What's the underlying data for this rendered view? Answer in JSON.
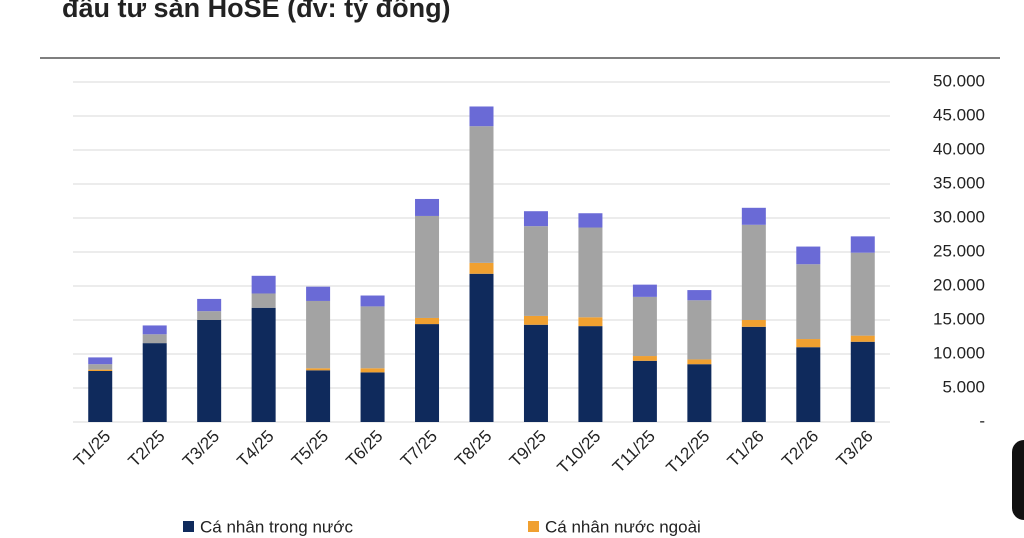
{
  "chart_data": {
    "type": "stacked_bar",
    "title": "đầu tư sàn HoSE (đv: tỷ đồng)",
    "categories": [
      "T1/25",
      "T2/25",
      "T3/25",
      "T4/25",
      "T5/25",
      "T6/25",
      "T7/25",
      "T8/25",
      "T9/25",
      "T10/25",
      "T11/25",
      "T12/25",
      "T1/26",
      "T2/26",
      "T3/26"
    ],
    "series": [
      {
        "name": "Cá nhân trong nước",
        "color": "#0f2a5c",
        "values": [
          7500,
          11600,
          15000,
          16800,
          7600,
          7300,
          14400,
          21800,
          14300,
          14100,
          9000,
          8500,
          14000,
          11000,
          11800
        ]
      },
      {
        "name": "Cá nhân nước ngoài",
        "color": "#f0a030",
        "values": [
          200,
          0,
          0,
          0,
          300,
          600,
          900,
          1600,
          1300,
          1300,
          700,
          700,
          1000,
          1200,
          900
        ]
      },
      {
        "color": "#a3a3a3",
        "values": [
          800,
          1300,
          1300,
          2100,
          9900,
          9100,
          15000,
          20100,
          13200,
          13200,
          8700,
          8700,
          14000,
          11000,
          12200
        ]
      },
      {
        "color": "#6a6ad6",
        "values": [
          1000,
          1300,
          1800,
          2600,
          2100,
          1600,
          2500,
          2900,
          2200,
          2100,
          1800,
          1500,
          2500,
          2600,
          2400
        ]
      }
    ],
    "ylim": [
      0,
      50000
    ],
    "yticks": [
      {
        "value": 0,
        "label": "-"
      },
      {
        "value": 5000,
        "label": "5.000"
      },
      {
        "value": 10000,
        "label": "10.000"
      },
      {
        "value": 15000,
        "label": "15.000"
      },
      {
        "value": 20000,
        "label": "20.000"
      },
      {
        "value": 25000,
        "label": "25.000"
      },
      {
        "value": 30000,
        "label": "30.000"
      },
      {
        "value": 35000,
        "label": "35.000"
      },
      {
        "value": 40000,
        "label": "40.000"
      },
      {
        "value": 45000,
        "label": "45.000"
      },
      {
        "value": 50000,
        "label": "50.000"
      }
    ],
    "grid": true
  }
}
